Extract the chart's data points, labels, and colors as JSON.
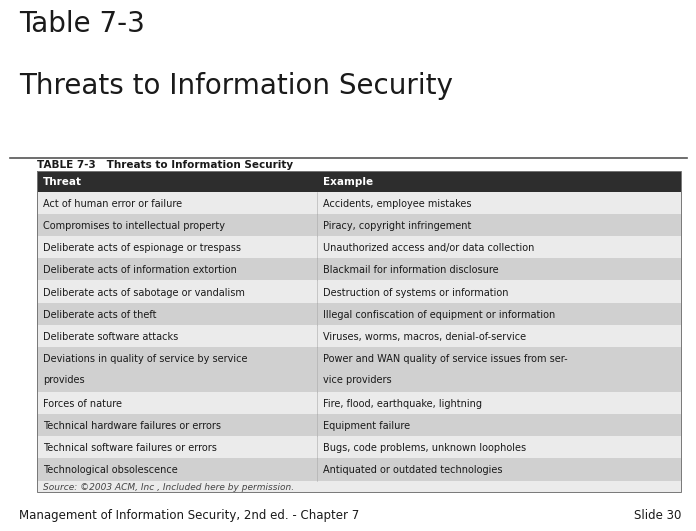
{
  "title_line1": "Table 7-3",
  "title_line2": "Threats to Information Security",
  "table_title": "TABLE 7-3   Threats to Information Security",
  "header": [
    "Threat",
    "Example"
  ],
  "rows": [
    [
      "Act of human error or failure",
      "Accidents, employee mistakes"
    ],
    [
      "Compromises to intellectual property",
      "Piracy, copyright infringement"
    ],
    [
      "Deliberate acts of espionage or trespass",
      "Unauthorized access and/or data collection"
    ],
    [
      "Deliberate acts of information extortion",
      "Blackmail for information disclosure"
    ],
    [
      "Deliberate acts of sabotage or vandalism",
      "Destruction of systems or information"
    ],
    [
      "Deliberate acts of theft",
      "Illegal confiscation of equipment or information"
    ],
    [
      "Deliberate software attacks",
      "Viruses, worms, macros, denial-of-service"
    ],
    [
      "Deviations in quality of service by service\nprovides",
      "Power and WAN quality of service issues from ser-\nvice providers"
    ],
    [
      "Forces of nature",
      "Fire, flood, earthquake, lightning"
    ],
    [
      "Technical hardware failures or errors",
      "Equipment failure"
    ],
    [
      "Technical software failures or errors",
      "Bugs, code problems, unknown loopholes"
    ],
    [
      "Technological obsolescence",
      "Antiquated or outdated technologies"
    ]
  ],
  "source_text": "Source: ©2003 ACM, Inc , Included here by permission.",
  "footer_left": "Management of Information Security, 2nd ed. - Chapter 7",
  "footer_right": "Slide 30",
  "bg_color": "#ffffff",
  "header_bg": "#2d2d2d",
  "header_fg": "#ffffff",
  "row_colors": [
    "#ebebeb",
    "#d0d0d0"
  ],
  "col_split": 0.435,
  "title_fontsize": 20,
  "table_title_fontsize": 7.5,
  "header_fontsize": 7.5,
  "row_fontsize": 7,
  "footer_fontsize": 8.5
}
